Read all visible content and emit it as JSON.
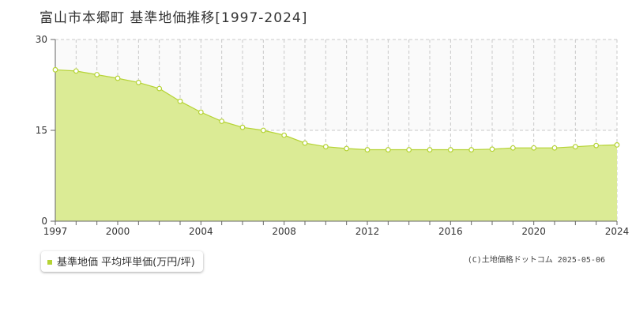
{
  "title": "富山市本郷町 基準地価推移[1997-2024]",
  "copyright": "(C)土地価格ドットコム 2025-05-06",
  "colors": {
    "fill": "#dbeb95",
    "line": "#b5d334",
    "marker_fill": "#ffffff",
    "grid": "#c8c8c8",
    "axis": "#666666"
  },
  "chart_data": {
    "type": "area",
    "title": "富山市本郷町 基準地価推移[1997-2024]",
    "xlabel": "",
    "ylabel": "",
    "xlim": [
      1997,
      2024
    ],
    "ylim": [
      0,
      30
    ],
    "yticks": [
      0,
      15,
      30
    ],
    "xticks": [
      1997,
      2000,
      2004,
      2008,
      2012,
      2016,
      2020,
      2024
    ],
    "grid": true,
    "legend_position": "bottom-left",
    "series": [
      {
        "name": "基準地価 平均坪単価(万円/坪)",
        "x": [
          1997,
          1998,
          1999,
          2000,
          2001,
          2002,
          2003,
          2004,
          2005,
          2006,
          2007,
          2008,
          2009,
          2010,
          2011,
          2012,
          2013,
          2014,
          2015,
          2016,
          2017,
          2018,
          2019,
          2020,
          2021,
          2022,
          2023,
          2024
        ],
        "values": [
          25.0,
          24.8,
          24.2,
          23.6,
          22.9,
          21.9,
          19.8,
          18.0,
          16.5,
          15.5,
          15.0,
          14.2,
          12.9,
          12.3,
          12.0,
          11.8,
          11.8,
          11.8,
          11.8,
          11.8,
          11.8,
          11.9,
          12.1,
          12.1,
          12.1,
          12.3,
          12.5,
          12.6
        ]
      }
    ]
  }
}
